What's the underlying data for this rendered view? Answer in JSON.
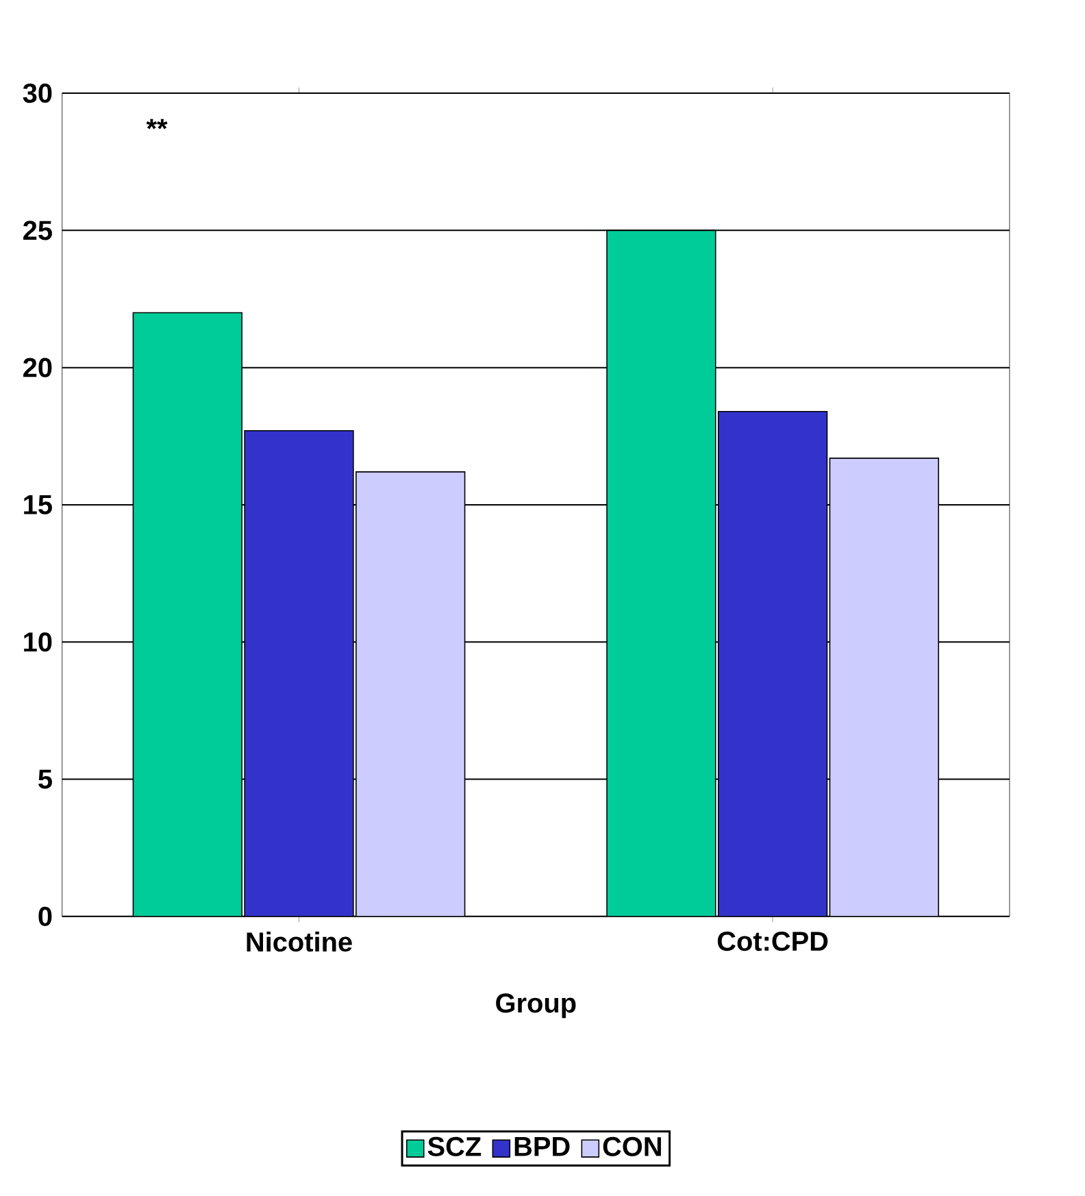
{
  "chart_data": {
    "type": "bar",
    "xlabel": "Group",
    "categories": [
      "Nicotine",
      "Cot:CPD"
    ],
    "series": [
      {
        "name": "SCZ",
        "color": "#00cc99",
        "values": [
          22,
          25
        ]
      },
      {
        "name": "BPD",
        "color": "#3333cc",
        "values": [
          17.7,
          18.4
        ]
      },
      {
        "name": "CON",
        "color": "#ccccff",
        "values": [
          16.2,
          16.7
        ]
      }
    ],
    "ylim": [
      0,
      30
    ],
    "yticks": [
      0,
      5,
      10,
      15,
      20,
      25,
      30
    ],
    "grid": "y",
    "legend": "bottom",
    "annotations": [
      "**"
    ]
  }
}
